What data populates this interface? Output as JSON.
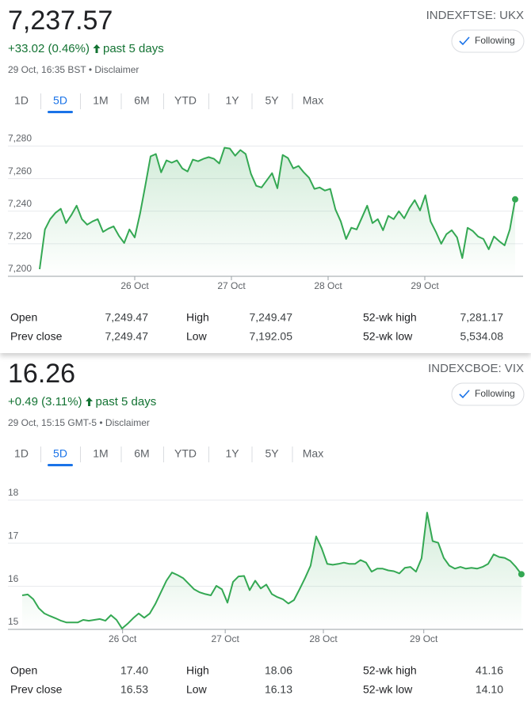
{
  "panels": [
    {
      "price": "7,237.57",
      "change": "+33.02 (0.46%)",
      "period": "past 5 days",
      "timestamp": "29 Oct, 16:35 BST • Disclaimer",
      "ticker": "INDEXFTSE: UKX",
      "button": "Following",
      "tabs": [
        "1D",
        "5D",
        "1M",
        "6M",
        "YTD",
        "1Y",
        "5Y",
        "Max"
      ],
      "active_tab": 1,
      "stats": [
        [
          {
            "label": "Open",
            "value": "7,249.47"
          },
          {
            "label": "High",
            "value": "7,249.47"
          },
          {
            "label": "52-wk high",
            "value": "7,281.17"
          }
        ],
        [
          {
            "label": "Prev close",
            "value": "7,249.47"
          },
          {
            "label": "Low",
            "value": "7,192.05"
          },
          {
            "label": "52-wk low",
            "value": "5,534.08"
          }
        ]
      ]
    },
    {
      "price": "16.26",
      "change": "+0.49 (3.11%)",
      "period": "past 5 days",
      "timestamp": "29 Oct, 15:15 GMT-5 • Disclaimer",
      "ticker": "INDEXCBOE: VIX",
      "button": "Following",
      "tabs": [
        "1D",
        "5D",
        "1M",
        "6M",
        "YTD",
        "1Y",
        "5Y",
        "Max"
      ],
      "active_tab": 1,
      "stats": [
        [
          {
            "label": "Open",
            "value": "17.40"
          },
          {
            "label": "High",
            "value": "18.06"
          },
          {
            "label": "52-wk high",
            "value": "41.16"
          }
        ],
        [
          {
            "label": "Prev close",
            "value": "16.53"
          },
          {
            "label": "Low",
            "value": "16.13"
          },
          {
            "label": "52-wk low",
            "value": "14.10"
          }
        ]
      ]
    }
  ],
  "chart_data": [
    {
      "type": "line",
      "color": "#34a853",
      "grid": true,
      "values": [
        7204.4,
        7228.8,
        7235.1,
        7239.0,
        7241.5,
        7232.7,
        7237.6,
        7243.4,
        7235.1,
        7231.7,
        7233.7,
        7235.1,
        7227.3,
        7229.3,
        7230.7,
        7224.9,
        7220.5,
        7228.8,
        7223.9,
        7238.5,
        7255.6,
        7273.7,
        7275.1,
        7263.9,
        7271.2,
        7269.8,
        7271.2,
        7266.3,
        7264.4,
        7271.7,
        7270.7,
        7272.2,
        7273.2,
        7272.2,
        7269.3,
        7279.0,
        7278.5,
        7274.1,
        7277.6,
        7275.1,
        7262.9,
        7255.6,
        7254.6,
        7259.0,
        7263.4,
        7254.1,
        7274.6,
        7272.7,
        7266.3,
        7267.8,
        7263.9,
        7260.5,
        7253.7,
        7254.6,
        7252.7,
        7253.7,
        7241.0,
        7233.7,
        7222.9,
        7229.8,
        7228.8,
        7236.1,
        7243.4,
        7232.7,
        7235.1,
        7228.3,
        7237.1,
        7235.1,
        7240.0,
        7235.6,
        7242.0,
        7246.8,
        7240.5,
        7249.8,
        7233.7,
        7227.3,
        7220.0,
        7225.9,
        7228.3,
        7223.9,
        7211.2,
        7229.8,
        7227.8,
        7224.4,
        7222.9,
        7216.6,
        7224.4,
        7221.5,
        7219.0,
        7228.8,
        7247.3
      ],
      "xlim": [
        0,
        91.5
      ],
      "xticks": [
        {
          "value": 18,
          "label": "26 Oct"
        },
        {
          "value": 36.3,
          "label": "27 Oct"
        },
        {
          "value": 54.6,
          "label": "28 Oct"
        },
        {
          "value": 72.9,
          "label": "29 Oct"
        }
      ],
      "ylim": [
        7200,
        7290
      ],
      "yticks": [
        {
          "value": 7200,
          "label": "7,200"
        },
        {
          "value": 7220,
          "label": "7,220"
        },
        {
          "value": 7240,
          "label": "7,240"
        },
        {
          "value": 7260,
          "label": "7,260"
        },
        {
          "value": 7280,
          "label": "7,280"
        }
      ]
    },
    {
      "type": "line",
      "color": "#34a853",
      "grid": true,
      "values": [
        15.79,
        15.81,
        15.7,
        15.49,
        15.37,
        15.31,
        15.26,
        15.2,
        15.16,
        15.16,
        15.16,
        15.22,
        15.2,
        15.22,
        15.24,
        15.2,
        15.33,
        15.22,
        15.02,
        15.13,
        15.26,
        15.37,
        15.27,
        15.37,
        15.59,
        15.86,
        16.13,
        16.32,
        16.26,
        16.19,
        16.06,
        15.93,
        15.86,
        15.82,
        15.79,
        16.01,
        15.93,
        15.62,
        16.1,
        16.23,
        16.24,
        15.91,
        16.13,
        15.95,
        16.04,
        15.82,
        15.75,
        15.7,
        15.6,
        15.68,
        15.93,
        16.19,
        16.48,
        17.16,
        16.88,
        16.52,
        16.5,
        16.52,
        16.55,
        16.52,
        16.52,
        16.61,
        16.55,
        16.34,
        16.41,
        16.41,
        16.37,
        16.35,
        16.3,
        16.43,
        16.45,
        16.34,
        16.65,
        17.71,
        17.05,
        17.01,
        16.66,
        16.48,
        16.41,
        16.45,
        16.41,
        16.43,
        16.41,
        16.45,
        16.52,
        16.74,
        16.68,
        16.66,
        16.59,
        16.45,
        16.28
      ],
      "xlim": [
        0,
        90.3
      ],
      "xticks": [
        {
          "value": 18.1,
          "label": "26 Oct"
        },
        {
          "value": 36.6,
          "label": "27 Oct"
        },
        {
          "value": 54.3,
          "label": "28 Oct"
        },
        {
          "value": 72.4,
          "label": "29 Oct"
        }
      ],
      "ylim": [
        15,
        18.4
      ],
      "yticks": [
        15,
        16,
        17,
        18
      ]
    }
  ]
}
